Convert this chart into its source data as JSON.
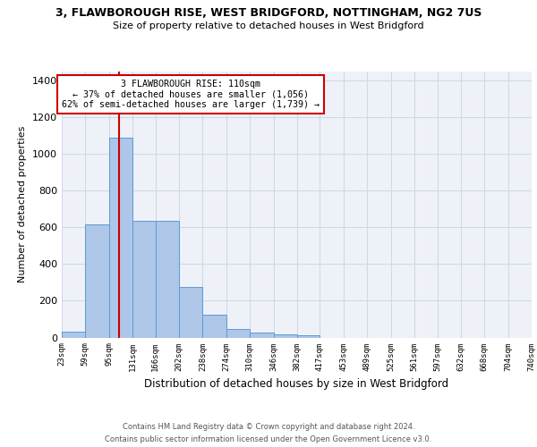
{
  "title": "3, FLAWBOROUGH RISE, WEST BRIDGFORD, NOTTINGHAM, NG2 7US",
  "subtitle": "Size of property relative to detached houses in West Bridgford",
  "xlabel": "Distribution of detached houses by size in West Bridgford",
  "ylabel": "Number of detached properties",
  "bin_edges": [
    23,
    59,
    95,
    131,
    166,
    202,
    238,
    274,
    310,
    346,
    382,
    417,
    453,
    489,
    525,
    561,
    597,
    632,
    668,
    704,
    740
  ],
  "bar_heights": [
    30,
    615,
    1090,
    635,
    635,
    275,
    125,
    45,
    25,
    15,
    10,
    0,
    0,
    0,
    0,
    0,
    0,
    0,
    0,
    0
  ],
  "bar_color": "#aec6e8",
  "bar_edge_color": "#5b9bd5",
  "grid_color": "#d0d8e8",
  "background_color": "#eef2f8",
  "red_line_x": 110,
  "annotation_title": "3 FLAWBOROUGH RISE: 110sqm",
  "annotation_line1": "← 37% of detached houses are smaller (1,056)",
  "annotation_line2": "62% of semi-detached houses are larger (1,739) →",
  "annotation_box_color": "#ffffff",
  "annotation_border_color": "#cc0000",
  "red_line_color": "#cc0000",
  "footer1": "Contains HM Land Registry data © Crown copyright and database right 2024.",
  "footer2": "Contains public sector information licensed under the Open Government Licence v3.0.",
  "ylim": [
    0,
    1450
  ],
  "yticks": [
    0,
    200,
    400,
    600,
    800,
    1000,
    1200,
    1400
  ]
}
